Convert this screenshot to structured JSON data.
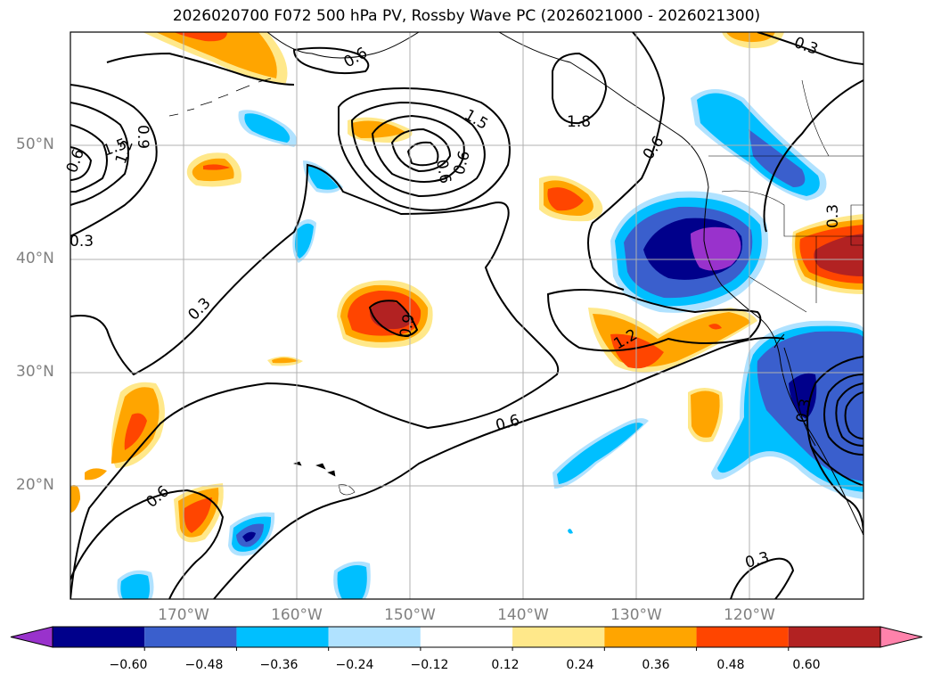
{
  "title": "2026020700 F072 500 hPa PV, Rossby Wave PC (2026021000 - 2026021300)",
  "lat_labels": [
    "50°N",
    "40°N",
    "30°N",
    "20°N"
  ],
  "lon_labels": [
    "170°W",
    "160°W",
    "150°W",
    "140°W",
    "130°W",
    "120°W"
  ],
  "contour_labels": [
    "0.3",
    "0.6",
    "0.9",
    "1.2",
    "1.5",
    "1.8",
    "0.3",
    "0.6",
    "0.3",
    "0.6",
    "0.3",
    "0.6",
    "0.3",
    "0.6",
    "0.6",
    "0.9",
    "1.2",
    "1.5",
    "0.6",
    "0.3"
  ],
  "colorbar": {
    "ticks": [
      "−0.60",
      "−0.48",
      "−0.36",
      "−0.24",
      "−0.12",
      "0.12",
      "0.24",
      "0.36",
      "0.48",
      "0.60"
    ],
    "colors": [
      "#9932cc",
      "#00008b",
      "#3a5fcd",
      "#00bfff",
      "#b0e2ff",
      "#ffffff",
      "#ffe88a",
      "#ffa500",
      "#ff4500",
      "#b22222",
      "#ff82ab"
    ]
  }
}
